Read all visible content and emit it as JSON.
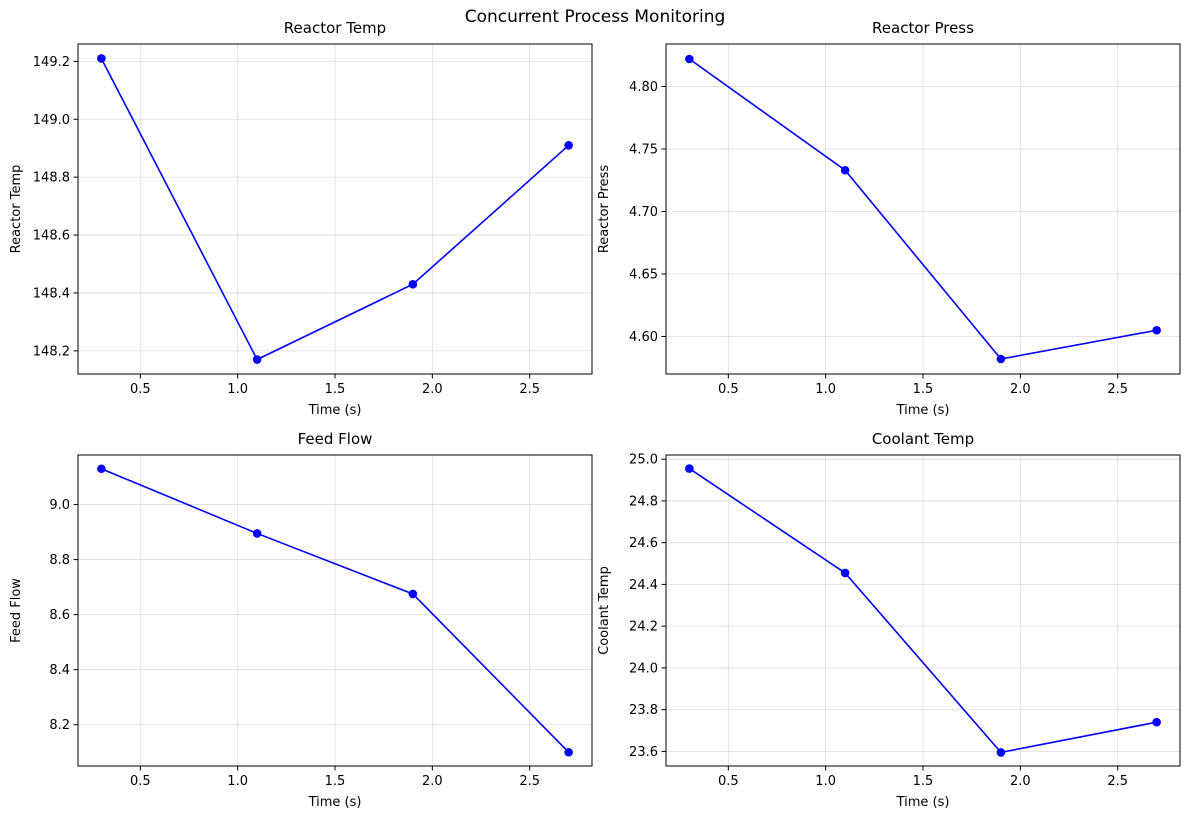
{
  "figure": {
    "title": "Concurrent Process Monitoring"
  },
  "chart_data": [
    {
      "type": "line",
      "title": "Reactor Temp",
      "xlabel": "Time (s)",
      "ylabel": "Reactor Temp",
      "x": [
        0.3,
        1.1,
        1.9,
        2.7
      ],
      "series": [
        {
          "values": [
            149.21,
            148.17,
            148.43,
            148.91
          ],
          "color": "#0000ff"
        }
      ],
      "xlim": [
        0.18,
        2.82
      ],
      "ylim": [
        148.12,
        149.26
      ],
      "xticks": [
        0.5,
        1.0,
        1.5,
        2.0,
        2.5
      ],
      "xtick_labels": [
        "0.5",
        "1.0",
        "1.5",
        "2.0",
        "2.5"
      ],
      "yticks": [
        148.2,
        148.4,
        148.6,
        148.8,
        149.0,
        149.2
      ],
      "ytick_labels": [
        "148.2",
        "148.4",
        "148.6",
        "148.8",
        "149.0",
        "149.2"
      ],
      "grid": true
    },
    {
      "type": "line",
      "title": "Reactor Press",
      "xlabel": "Time (s)",
      "ylabel": "Reactor Press",
      "x": [
        0.3,
        1.1,
        1.9,
        2.7
      ],
      "series": [
        {
          "values": [
            4.822,
            4.733,
            4.582,
            4.605
          ],
          "color": "#0000ff"
        }
      ],
      "xlim": [
        0.18,
        2.82
      ],
      "ylim": [
        4.57,
        4.834
      ],
      "xticks": [
        0.5,
        1.0,
        1.5,
        2.0,
        2.5
      ],
      "xtick_labels": [
        "0.5",
        "1.0",
        "1.5",
        "2.0",
        "2.5"
      ],
      "yticks": [
        4.6,
        4.65,
        4.7,
        4.75,
        4.8
      ],
      "ytick_labels": [
        "4.60",
        "4.65",
        "4.70",
        "4.75",
        "4.80"
      ],
      "grid": true
    },
    {
      "type": "line",
      "title": "Feed Flow",
      "xlabel": "Time (s)",
      "ylabel": "Feed Flow",
      "x": [
        0.3,
        1.1,
        1.9,
        2.7
      ],
      "series": [
        {
          "values": [
            9.13,
            8.895,
            8.675,
            8.1
          ],
          "color": "#0000ff"
        }
      ],
      "xlim": [
        0.18,
        2.82
      ],
      "ylim": [
        8.05,
        9.18
      ],
      "xticks": [
        0.5,
        1.0,
        1.5,
        2.0,
        2.5
      ],
      "xtick_labels": [
        "0.5",
        "1.0",
        "1.5",
        "2.0",
        "2.5"
      ],
      "yticks": [
        8.2,
        8.4,
        8.6,
        8.8,
        9.0
      ],
      "ytick_labels": [
        "8.2",
        "8.4",
        "8.6",
        "8.8",
        "9.0"
      ],
      "grid": true
    },
    {
      "type": "line",
      "title": "Coolant Temp",
      "xlabel": "Time (s)",
      "ylabel": "Coolant Temp",
      "x": [
        0.3,
        1.1,
        1.9,
        2.7
      ],
      "series": [
        {
          "values": [
            24.955,
            24.455,
            23.595,
            23.74
          ],
          "color": "#0000ff"
        }
      ],
      "xlim": [
        0.18,
        2.82
      ],
      "ylim": [
        23.53,
        25.02
      ],
      "xticks": [
        0.5,
        1.0,
        1.5,
        2.0,
        2.5
      ],
      "xtick_labels": [
        "0.5",
        "1.0",
        "1.5",
        "2.0",
        "2.5"
      ],
      "yticks": [
        23.6,
        23.8,
        24.0,
        24.2,
        24.4,
        24.6,
        24.8,
        25.0
      ],
      "ytick_labels": [
        "23.6",
        "23.8",
        "24.0",
        "24.2",
        "24.4",
        "24.6",
        "24.8",
        "25.0"
      ],
      "grid": true
    }
  ]
}
